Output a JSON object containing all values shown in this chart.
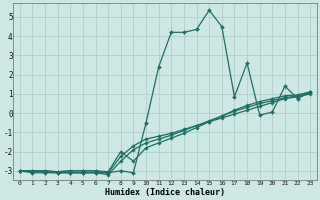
{
  "xlabel": "Humidex (Indice chaleur)",
  "bg_color": "#cde8e4",
  "grid_color": "#b0d0cc",
  "line_color": "#1e6e64",
  "xlim": [
    -0.5,
    23.5
  ],
  "ylim": [
    -3.5,
    5.7
  ],
  "xticks": [
    0,
    1,
    2,
    3,
    4,
    5,
    6,
    7,
    8,
    9,
    10,
    11,
    12,
    13,
    14,
    15,
    16,
    17,
    18,
    19,
    20,
    21,
    22,
    23
  ],
  "yticks": [
    -3,
    -2,
    -1,
    0,
    1,
    2,
    3,
    4,
    5
  ],
  "series1": [
    [
      0,
      -3.0
    ],
    [
      1,
      -3.1
    ],
    [
      2,
      -3.1
    ],
    [
      3,
      -3.1
    ],
    [
      4,
      -3.1
    ],
    [
      5,
      -3.1
    ],
    [
      6,
      -3.1
    ],
    [
      7,
      -3.1
    ],
    [
      8,
      -3.0
    ],
    [
      9,
      -3.1
    ],
    [
      10,
      -0.5
    ],
    [
      11,
      2.4
    ],
    [
      12,
      4.2
    ],
    [
      13,
      4.2
    ],
    [
      14,
      4.35
    ],
    [
      15,
      5.35
    ],
    [
      16,
      4.5
    ],
    [
      17,
      0.85
    ],
    [
      18,
      2.6
    ],
    [
      19,
      -0.1
    ],
    [
      20,
      0.05
    ],
    [
      21,
      1.4
    ],
    [
      22,
      0.75
    ],
    [
      23,
      1.1
    ]
  ],
  "series2": [
    [
      0,
      -3.0
    ],
    [
      1,
      -3.05
    ],
    [
      2,
      -3.05
    ],
    [
      3,
      -3.1
    ],
    [
      4,
      -3.1
    ],
    [
      5,
      -3.1
    ],
    [
      6,
      -3.1
    ],
    [
      7,
      -3.2
    ],
    [
      8,
      -2.5
    ],
    [
      9,
      -1.9
    ],
    [
      10,
      -1.55
    ],
    [
      11,
      -1.35
    ],
    [
      12,
      -1.15
    ],
    [
      13,
      -0.9
    ],
    [
      14,
      -0.65
    ],
    [
      15,
      -0.4
    ],
    [
      16,
      -0.15
    ],
    [
      17,
      0.1
    ],
    [
      18,
      0.3
    ],
    [
      19,
      0.5
    ],
    [
      20,
      0.65
    ],
    [
      21,
      0.8
    ],
    [
      22,
      0.9
    ],
    [
      23,
      1.1
    ]
  ],
  "series3": [
    [
      0,
      -3.0
    ],
    [
      1,
      -3.0
    ],
    [
      2,
      -3.0
    ],
    [
      3,
      -3.05
    ],
    [
      4,
      -3.0
    ],
    [
      5,
      -3.0
    ],
    [
      6,
      -3.0
    ],
    [
      7,
      -3.1
    ],
    [
      8,
      -2.25
    ],
    [
      9,
      -1.7
    ],
    [
      10,
      -1.35
    ],
    [
      11,
      -1.2
    ],
    [
      12,
      -1.05
    ],
    [
      13,
      -0.85
    ],
    [
      14,
      -0.65
    ],
    [
      15,
      -0.45
    ],
    [
      16,
      -0.25
    ],
    [
      17,
      -0.05
    ],
    [
      18,
      0.15
    ],
    [
      19,
      0.35
    ],
    [
      20,
      0.55
    ],
    [
      21,
      0.75
    ],
    [
      22,
      0.85
    ],
    [
      23,
      1.0
    ]
  ],
  "series4": [
    [
      0,
      -3.0
    ],
    [
      1,
      -3.0
    ],
    [
      2,
      -3.0
    ],
    [
      3,
      -3.05
    ],
    [
      4,
      -3.0
    ],
    [
      5,
      -3.0
    ],
    [
      6,
      -3.0
    ],
    [
      7,
      -3.05
    ],
    [
      8,
      -2.0
    ],
    [
      9,
      -2.5
    ],
    [
      10,
      -1.8
    ],
    [
      11,
      -1.55
    ],
    [
      12,
      -1.3
    ],
    [
      13,
      -1.05
    ],
    [
      14,
      -0.75
    ],
    [
      15,
      -0.45
    ],
    [
      16,
      -0.15
    ],
    [
      17,
      0.15
    ],
    [
      18,
      0.4
    ],
    [
      19,
      0.6
    ],
    [
      20,
      0.75
    ],
    [
      21,
      0.9
    ],
    [
      22,
      0.95
    ],
    [
      23,
      1.1
    ]
  ]
}
